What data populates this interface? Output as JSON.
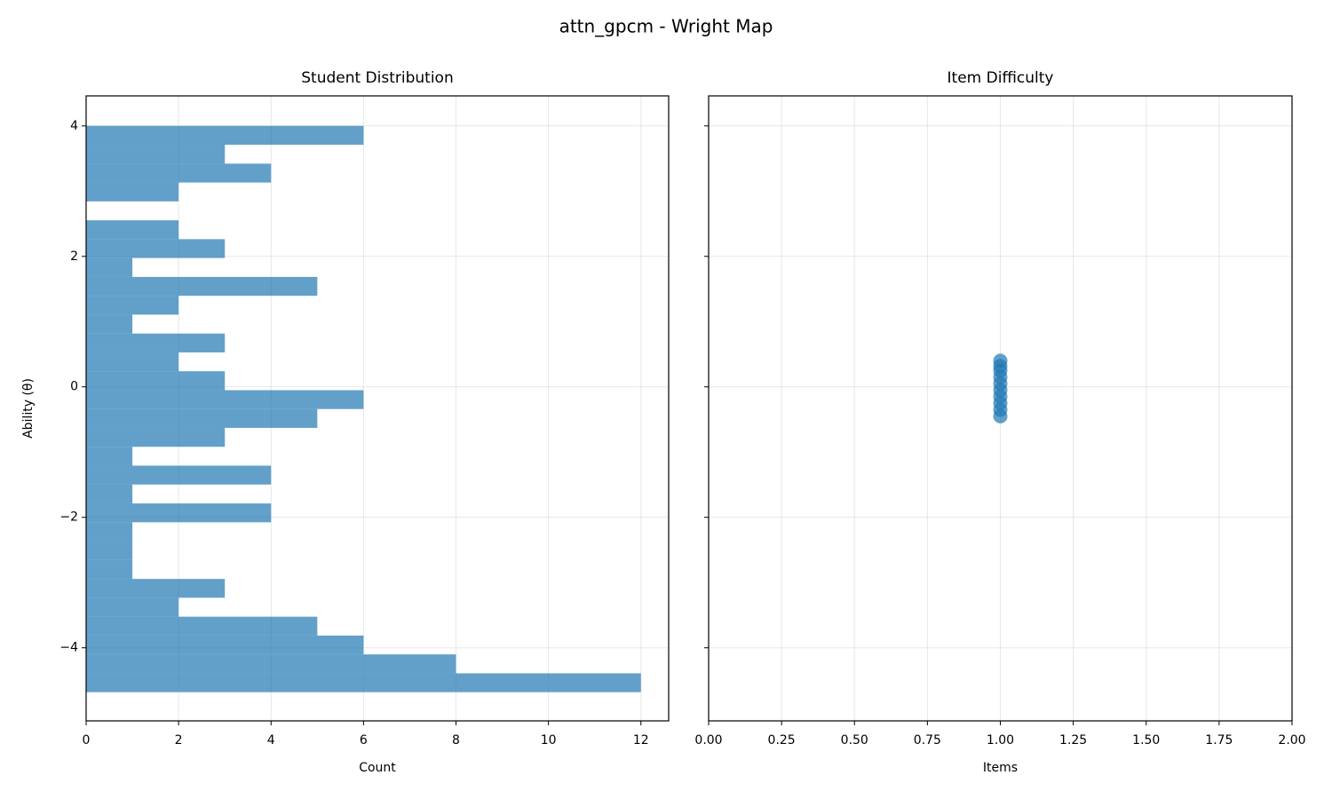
{
  "title": "attn_gpcm - Wright Map",
  "chart_data": [
    {
      "type": "histogram",
      "orientation": "horizontal",
      "title": "Student Distribution",
      "x_label": "Count",
      "y_label": "Ability (θ)",
      "bins": [
        -4.68,
        -4.391,
        -4.101,
        -3.812,
        -3.523,
        -3.233,
        -2.944,
        -2.655,
        -2.365,
        -2.076,
        -1.787,
        -1.497,
        -1.208,
        -0.919,
        -0.629,
        -0.34,
        -0.051,
        0.239,
        0.528,
        0.817,
        1.107,
        1.396,
        1.685,
        1.975,
        2.264,
        2.553,
        2.843,
        3.132,
        3.421,
        3.711,
        4.0
      ],
      "values": [
        12,
        8,
        6,
        5,
        2,
        3,
        1,
        1,
        1,
        4,
        1,
        4,
        1,
        3,
        5,
        6,
        3,
        2,
        3,
        1,
        2,
        5,
        1,
        3,
        2,
        0,
        2,
        4,
        3,
        6
      ],
      "color": "#1f77b4",
      "opacity": 0.7,
      "xlim": [
        0,
        12.6
      ],
      "xticks": [
        0,
        2,
        4,
        6,
        8,
        10,
        12
      ],
      "ylim": [
        -5.12,
        4.46
      ],
      "yticks": [
        {
          "value": -4,
          "label": "−4"
        },
        {
          "value": -2,
          "label": "−2"
        },
        0,
        2,
        4
      ],
      "grid": true
    },
    {
      "type": "scatter",
      "title": "Item Difficulty",
      "x_label": "Items",
      "x": [
        1,
        1,
        1,
        1,
        1,
        1,
        1,
        1,
        1,
        1
      ],
      "values": [
        -0.45,
        -0.35,
        -0.25,
        -0.15,
        -0.05,
        0.05,
        0.15,
        0.25,
        0.32,
        0.4
      ],
      "color": "#1f77b4",
      "opacity": 0.7,
      "xlim": [
        0,
        2
      ],
      "xticks": [
        {
          "value": 0,
          "label": "0.00"
        },
        {
          "value": 0.25,
          "label": "0.25"
        },
        {
          "value": 0.5,
          "label": "0.50"
        },
        {
          "value": 0.75,
          "label": "0.75"
        },
        {
          "value": 1,
          "label": "1.00"
        },
        {
          "value": 1.25,
          "label": "1.25"
        },
        {
          "value": 1.5,
          "label": "1.50"
        },
        {
          "value": 1.75,
          "label": "1.75"
        },
        {
          "value": 2,
          "label": "2.00"
        }
      ],
      "ylim": [
        -5.12,
        4.46
      ],
      "yticks": [
        -4,
        -2,
        0,
        2,
        4
      ],
      "show_ytick_labels": false,
      "grid": true
    }
  ]
}
